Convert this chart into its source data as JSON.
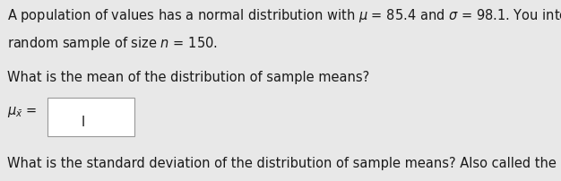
{
  "bg_color": "#e8e8e8",
  "text_color": "#1a1a1a",
  "box_color": "#ffffff",
  "box_border": "#999999",
  "blue_bar_color": "#1a6fcc",
  "font_size": 10.5,
  "cursor_text": "I",
  "mu_val": "85.4",
  "sigma_val": "98.1",
  "n_val": "150"
}
